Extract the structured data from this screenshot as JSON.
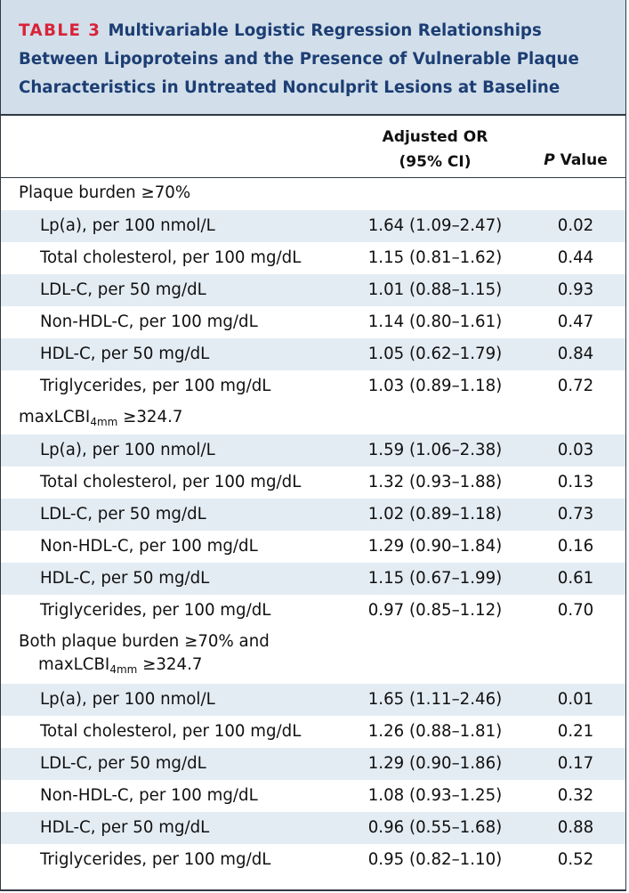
{
  "title": {
    "label": "TABLE 3",
    "text": "Multivariable Logistic Regression Relationships Between Lipoproteins and the Presence of Vulnerable Plaque Characteristics in Untreated Nonculprit Lesions at Baseline"
  },
  "columns": {
    "or_line1": "Adjusted OR",
    "or_line2": "(95% CI)",
    "p_italic": "P",
    "p_rest": " Value"
  },
  "sections": [
    {
      "heading": "Plaque burden ≥70%",
      "rows": [
        {
          "label": "Lp(a), per 100 nmol/L",
          "or": "1.64 (1.09–2.47)",
          "p": "0.02"
        },
        {
          "label": "Total cholesterol, per 100 mg/dL",
          "or": "1.15 (0.81–1.62)",
          "p": "0.44"
        },
        {
          "label": "LDL-C, per 50 mg/dL",
          "or": "1.01 (0.88–1.15)",
          "p": "0.93"
        },
        {
          "label": "Non-HDL-C, per 100 mg/dL",
          "or": "1.14 (0.80–1.61)",
          "p": "0.47"
        },
        {
          "label": "HDL-C, per 50 mg/dL",
          "or": "1.05 (0.62–1.79)",
          "p": "0.84"
        },
        {
          "label": "Triglycerides, per 100 mg/dL",
          "or": "1.03 (0.89–1.18)",
          "p": "0.72"
        }
      ]
    },
    {
      "heading_pre": "maxLCBI",
      "heading_sub": "4mm",
      "heading_post": " ≥324.7",
      "rows": [
        {
          "label": "Lp(a), per 100 nmol/L",
          "or": "1.59 (1.06–2.38)",
          "p": "0.03"
        },
        {
          "label": "Total cholesterol, per 100 mg/dL",
          "or": "1.32 (0.93–1.88)",
          "p": "0.13"
        },
        {
          "label": "LDL-C, per 50 mg/dL",
          "or": "1.02 (0.89–1.18)",
          "p": "0.73"
        },
        {
          "label": "Non-HDL-C, per 100 mg/dL",
          "or": "1.29 (0.90–1.84)",
          "p": "0.16"
        },
        {
          "label": "HDL-C, per 50 mg/dL",
          "or": "1.15 (0.67–1.99)",
          "p": "0.61"
        },
        {
          "label": "Triglycerides, per 100 mg/dL",
          "or": "0.97 (0.85–1.12)",
          "p": "0.70"
        }
      ]
    },
    {
      "heading_line1": "Both plaque burden ≥70% and",
      "heading_pre": "maxLCBI",
      "heading_sub": "4mm",
      "heading_post": " ≥324.7",
      "rows": [
        {
          "label": "Lp(a), per 100 nmol/L",
          "or": "1.65 (1.11–2.46)",
          "p": "0.01"
        },
        {
          "label": "Total cholesterol, per 100 mg/dL",
          "or": "1.26 (0.88–1.81)",
          "p": "0.21"
        },
        {
          "label": "LDL-C, per 50 mg/dL",
          "or": "1.29 (0.90–1.86)",
          "p": "0.17"
        },
        {
          "label": "Non-HDL-C, per 100 mg/dL",
          "or": "1.08 (0.93–1.25)",
          "p": "0.32"
        },
        {
          "label": "HDL-C, per 50 mg/dL",
          "or": "0.96 (0.55–1.68)",
          "p": "0.88"
        },
        {
          "label": "Triglycerides, per 100 mg/dL",
          "or": "0.95 (0.82–1.10)",
          "p": "0.52"
        }
      ]
    }
  ],
  "colors": {
    "title_bg": "#d2dfea",
    "title_text": "#1d3e74",
    "label_red": "#d8233a",
    "row_shade": "#e4ecf3"
  }
}
